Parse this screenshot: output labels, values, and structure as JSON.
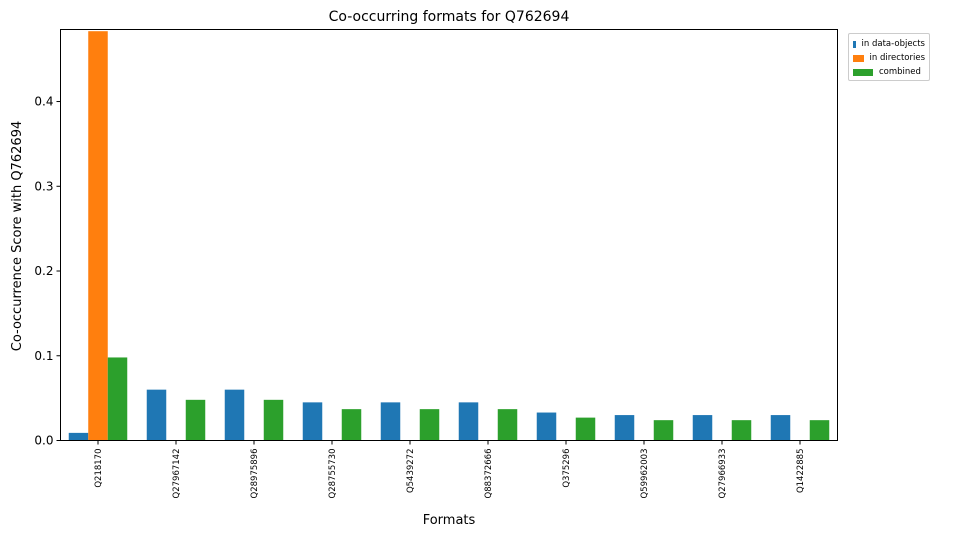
{
  "chart_data": {
    "type": "bar",
    "title": "Co-occurring formats for Q762694",
    "xlabel": "Formats",
    "ylabel": "Co-occurrence Score with Q762694",
    "ylim": [
      0,
      0.485
    ],
    "yticks": [
      "0.0",
      "0.1",
      "0.2",
      "0.3",
      "0.4"
    ],
    "ytick_values": [
      0,
      0.1,
      0.2,
      0.3,
      0.4
    ],
    "grid": false,
    "legend_position": "outside top-right",
    "categories": [
      "Q218170",
      "Q27967142",
      "Q28975896",
      "Q28755730",
      "Q5439272",
      "Q88372666",
      "Q375296",
      "Q59962003",
      "Q27966933",
      "Q1422885"
    ],
    "series": [
      {
        "name": "in data-objects",
        "color": "#1f77b4",
        "values": [
          0.009,
          0.06,
          0.06,
          0.045,
          0.045,
          0.045,
          0.033,
          0.03,
          0.03,
          0.03
        ]
      },
      {
        "name": "in directories",
        "color": "#ff7f0e",
        "values": [
          0.483,
          0,
          0,
          0,
          0,
          0,
          0,
          0,
          0,
          0
        ]
      },
      {
        "name": "combined",
        "color": "#2ca02c",
        "values": [
          0.098,
          0.048,
          0.048,
          0.037,
          0.037,
          0.037,
          0.027,
          0.024,
          0.024,
          0.024
        ]
      }
    ]
  }
}
